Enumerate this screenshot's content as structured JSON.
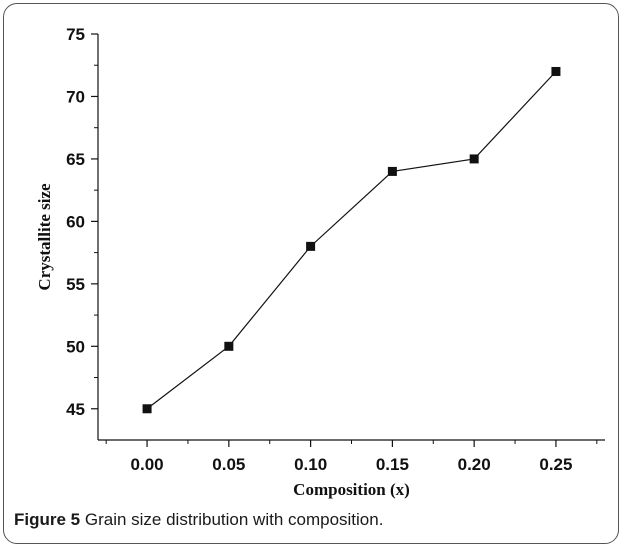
{
  "chart_data": {
    "type": "line",
    "xlabel": "Composition (x)",
    "ylabel": "Crystallite size",
    "xlim": [
      -0.03,
      0.28
    ],
    "ylim": [
      42.5,
      75
    ],
    "xticks": [
      "0.00",
      "0.05",
      "0.10",
      "0.15",
      "0.20",
      "0.25"
    ],
    "yticks": [
      "45",
      "50",
      "55",
      "60",
      "65",
      "70",
      "75"
    ],
    "grid": false,
    "marker": "square",
    "series": [
      {
        "x": [
          0.0,
          0.05,
          0.1,
          0.15,
          0.2,
          0.25
        ],
        "y": [
          45,
          50,
          58,
          64,
          65,
          72
        ]
      }
    ]
  },
  "caption": {
    "figure_label": "Figure 5",
    "text": "Grain size distribution with composition."
  }
}
